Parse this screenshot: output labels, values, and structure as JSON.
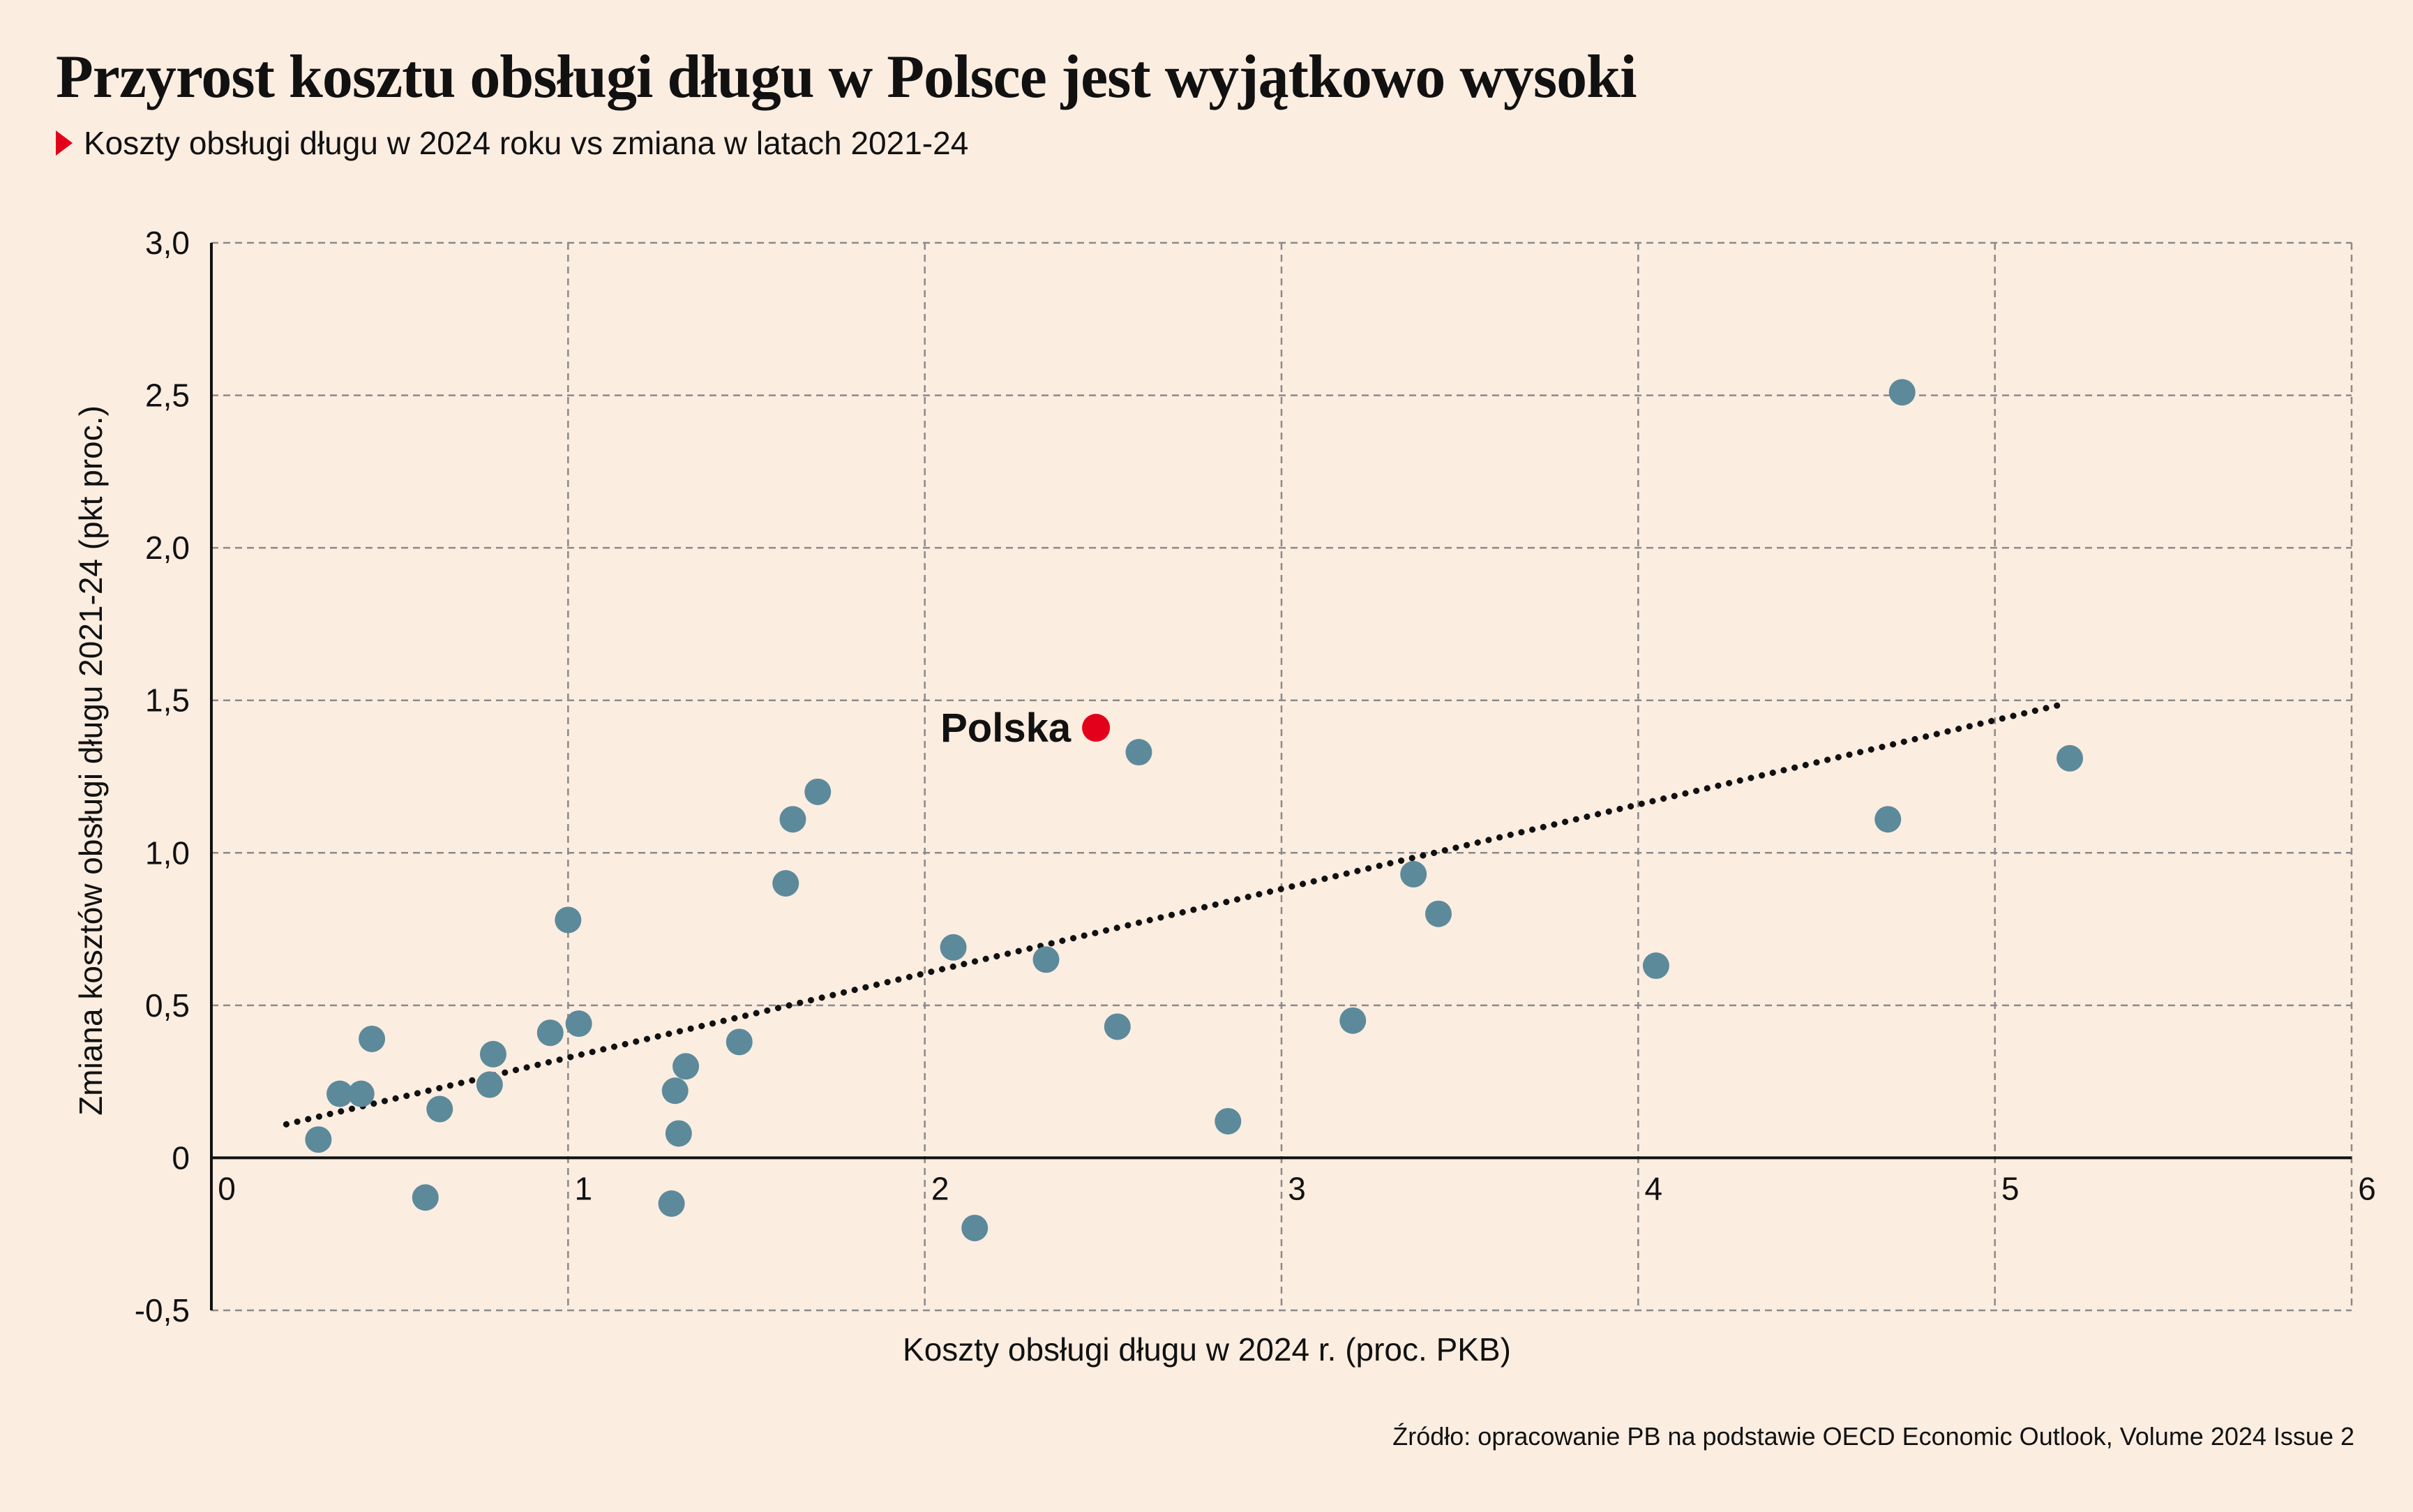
{
  "title": "Przyrost kosztu obsługi długu w Polsce jest wyjątkowo wysoki",
  "subtitle": "Koszty obsługi długu w 2024 roku vs zmiana w latach 2021-24",
  "source": "Źródło: opracowanie PB na podstawie OECD Economic Outlook, Volume 2024 Issue 2",
  "colors": {
    "background": "#fcede1",
    "point": "#5c8a9b",
    "highlight": "#e3001b",
    "trendline": "#111111",
    "grid": "#8a8a8a"
  },
  "chart_data": {
    "type": "scatter",
    "xlabel": "Koszty obsługi długu w 2024 r. (proc. PKB)",
    "ylabel": "Zmiana kosztów obsługi długu 2021-24 (pkt proc.)",
    "xlim": [
      0,
      6
    ],
    "ylim": [
      -0.5,
      3.0
    ],
    "xticks": [
      {
        "value": 0,
        "label": "0"
      },
      {
        "value": 1,
        "label": "1"
      },
      {
        "value": 2,
        "label": "2"
      },
      {
        "value": 3,
        "label": "3"
      },
      {
        "value": 4,
        "label": "4"
      },
      {
        "value": 5,
        "label": "5"
      },
      {
        "value": 6,
        "label": "6"
      }
    ],
    "yticks": [
      {
        "value": -0.5,
        "label": "-0,5"
      },
      {
        "value": 0,
        "label": "0"
      },
      {
        "value": 0.5,
        "label": "0,5"
      },
      {
        "value": 1.0,
        "label": "1,0"
      },
      {
        "value": 1.5,
        "label": "1,5"
      },
      {
        "value": 2.0,
        "label": "2,0"
      },
      {
        "value": 2.5,
        "label": "2,5"
      },
      {
        "value": 3.0,
        "label": "3,0"
      }
    ],
    "grid": true,
    "points": [
      {
        "x": 0.3,
        "y": 0.06
      },
      {
        "x": 0.36,
        "y": 0.21
      },
      {
        "x": 0.42,
        "y": 0.21
      },
      {
        "x": 0.45,
        "y": 0.39
      },
      {
        "x": 0.6,
        "y": -0.13
      },
      {
        "x": 0.64,
        "y": 0.16
      },
      {
        "x": 0.78,
        "y": 0.24
      },
      {
        "x": 0.79,
        "y": 0.34
      },
      {
        "x": 0.95,
        "y": 0.41
      },
      {
        "x": 1.0,
        "y": 0.78
      },
      {
        "x": 1.03,
        "y": 0.44
      },
      {
        "x": 1.29,
        "y": -0.15
      },
      {
        "x": 1.3,
        "y": 0.22
      },
      {
        "x": 1.31,
        "y": 0.08
      },
      {
        "x": 1.33,
        "y": 0.3
      },
      {
        "x": 1.48,
        "y": 0.38
      },
      {
        "x": 1.61,
        "y": 0.9
      },
      {
        "x": 1.63,
        "y": 1.11
      },
      {
        "x": 1.7,
        "y": 1.2
      },
      {
        "x": 2.08,
        "y": 0.69
      },
      {
        "x": 2.14,
        "y": -0.23
      },
      {
        "x": 2.34,
        "y": 0.65
      },
      {
        "x": 2.54,
        "y": 0.43
      },
      {
        "x": 2.6,
        "y": 1.33
      },
      {
        "x": 2.85,
        "y": 0.12
      },
      {
        "x": 3.2,
        "y": 0.45
      },
      {
        "x": 3.37,
        "y": 0.93
      },
      {
        "x": 3.44,
        "y": 0.8
      },
      {
        "x": 4.05,
        "y": 0.63
      },
      {
        "x": 4.7,
        "y": 1.11
      },
      {
        "x": 4.74,
        "y": 2.51
      },
      {
        "x": 5.21,
        "y": 1.31
      }
    ],
    "highlight": {
      "label": "Polska",
      "x": 2.48,
      "y": 1.41
    },
    "trendline": {
      "x": [
        0.21,
        5.2
      ],
      "y": [
        0.11,
        1.49
      ]
    }
  }
}
